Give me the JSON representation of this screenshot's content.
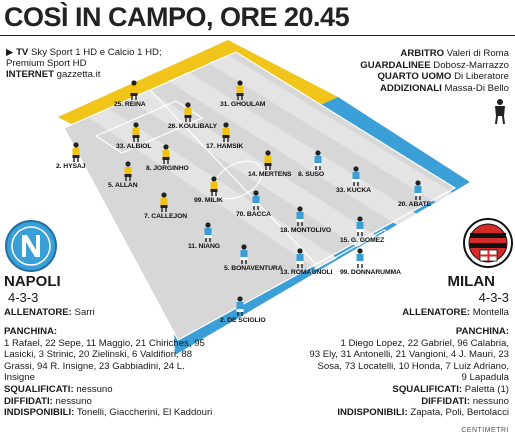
{
  "title": "COSÌ IN CAMPO, ORE 20.45",
  "broadcast": {
    "tv_label": "TV",
    "tv_text": "Sky Sport 1 HD e Calcio 1 HD;",
    "tv_text2": "Premium Sport HD",
    "internet_label": "INTERNET",
    "internet_text": "gazzetta.it"
  },
  "officials": {
    "referee_label": "ARBITRO",
    "referee": "Valeri di Roma",
    "linesmen_label": "GUARDALINEE",
    "linesmen": "Dobosz-Marrazzo",
    "fourth_label": "QUARTO UOMO",
    "fourth": "Di Liberatore",
    "additional_label": "ADDIZIONALI",
    "additional": "Massa-Di Bello"
  },
  "colors": {
    "napoli": "#f0c419",
    "milan": "#3a9fd6",
    "pitch": "#cfcfcf",
    "field": "#e2e2e2"
  },
  "napoli": {
    "name": "Napoli",
    "formation": "4-3-3",
    "coach_label": "ALLENATORE:",
    "coach": "Sarri",
    "bench_label": "PANCHINA:",
    "bench": "1 Rafael, 22 Sepe, 11 Maggio, 21 Chiriches, 95 Lasicki, 3 Strinic, 20 Zielinski, 6 Valdifiori, 88 Grassi, 94 R. Insigne, 23 Gabbiadini, 24 L. Insigne",
    "suspended_label": "SQUALIFICATI:",
    "suspended": "nessuno",
    "warned_label": "DIFFIDATI:",
    "warned": "nessuno",
    "unavailable_label": "INDISPONIBILI:",
    "unavailable": "Tonelli, Giaccherini, El Kaddouri",
    "players": [
      {
        "label": "25. REINA"
      },
      {
        "label": "31. GHOULAM"
      },
      {
        "label": "26. KOULIBALY"
      },
      {
        "label": "33. ALBIOL"
      },
      {
        "label": "17. HAMSIK"
      },
      {
        "label": "2. HYSAJ"
      },
      {
        "label": "8. JORGINHO"
      },
      {
        "label": "14. MERTENS"
      },
      {
        "label": "5. ALLAN"
      },
      {
        "label": "99. MILIK"
      },
      {
        "label": "7. CALLEJON"
      }
    ]
  },
  "milan": {
    "name": "Milan",
    "formation": "4-3-3",
    "coach_label": "ALLENATORE:",
    "coach": "Montella",
    "bench_label": "PANCHINA:",
    "bench_lines": [
      "1 Diego Lopez, 22 Gabriel, 96 Calabria,",
      "93 Ely, 31 Antonelli, 21 Vangioni, 4 J. Mauri, 23",
      "Sosa, 73 Locatelli, 10 Honda, 7 Luiz Adriano,",
      "9 Lapadula"
    ],
    "suspended_label": "SQUALIFICATI:",
    "suspended": "Paletta (1)",
    "warned_label": "DIFFIDATI:",
    "warned": "nessuno",
    "unavailable_label": "INDISPONIBILI:",
    "unavailable": "Zapata, Poli, Bertolacci",
    "players": [
      {
        "label": "8. SUSO"
      },
      {
        "label": "33. KUCKA"
      },
      {
        "label": "20. ABATE"
      },
      {
        "label": "70. BACCA"
      },
      {
        "label": "18. MONTOLIVO"
      },
      {
        "label": "15. G. GOMEZ"
      },
      {
        "label": "11. NIANG"
      },
      {
        "label": "5. BONAVENTURA"
      },
      {
        "label": "13. ROMAGNOLI"
      },
      {
        "label": "99. DONNARUMMA"
      },
      {
        "label": "2. DE SCIGLIO"
      }
    ]
  },
  "credit": "CENTIMETRI"
}
